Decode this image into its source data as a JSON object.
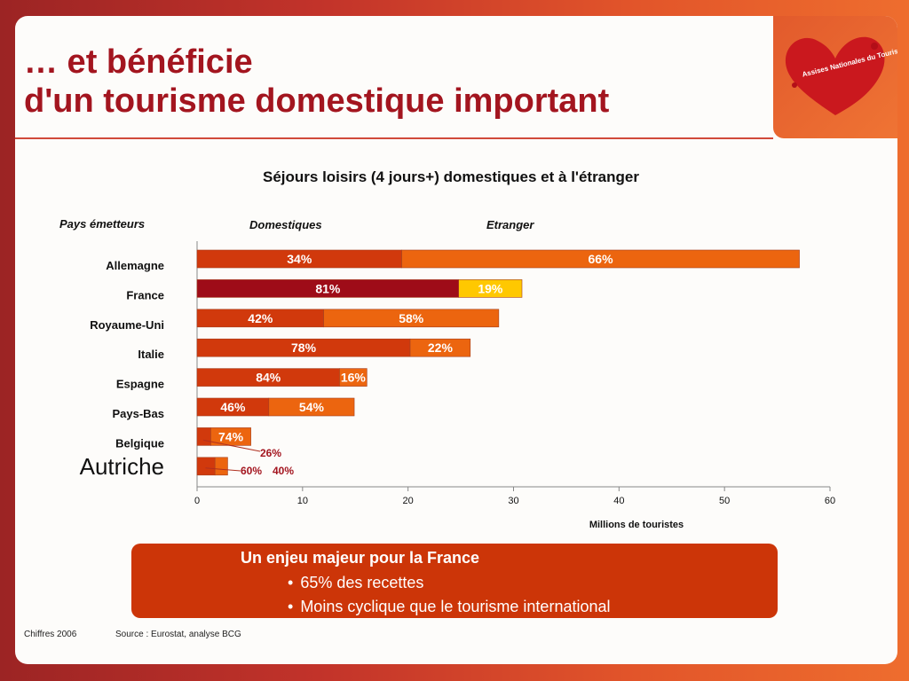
{
  "title": {
    "line1": "… et bénéficie",
    "line2": "d'un tourisme domestique important"
  },
  "logo": {
    "text": "Assises Nationales du Tourisme",
    "icon": "heart-logo-icon",
    "color": "#c8141e"
  },
  "chart_data": {
    "type": "bar",
    "orientation": "horizontal",
    "stacked": true,
    "title": "Séjours loisirs (4 jours+) domestiques et à l'étranger",
    "row_header": "Pays émetteurs",
    "xlabel": "Millions de touristes",
    "xlim": [
      0,
      60
    ],
    "xticks": [
      0,
      10,
      20,
      30,
      40,
      50,
      60
    ],
    "grid": false,
    "categories": [
      "Allemagne",
      "France",
      "Royaume-Uni",
      "Italie",
      "Espagne",
      "Pays-Bas",
      "Belgique",
      "Autriche"
    ],
    "series": [
      {
        "name": "Domestiques",
        "values": [
          19.4,
          24.8,
          12.0,
          20.2,
          13.5,
          6.8,
          1.3,
          1.7
        ],
        "labels": [
          "34%",
          "81%",
          "42%",
          "78%",
          "84%",
          "46%",
          "26%",
          "60%"
        ],
        "color": "#d1390c"
      },
      {
        "name": "Etranger",
        "values": [
          37.7,
          6.0,
          16.6,
          5.7,
          2.6,
          8.1,
          3.8,
          1.2
        ],
        "labels": [
          "66%",
          "19%",
          "58%",
          "22%",
          "16%",
          "54%",
          "74%",
          "40%"
        ],
        "color": "#ec650f"
      }
    ],
    "highlight": {
      "category": "France",
      "colors": [
        "#9e0c18",
        "#ffc800"
      ]
    }
  },
  "callout": {
    "heading": "Un enjeu majeur pour la France",
    "bullets": [
      "65% des recettes",
      "Moins cyclique que le tourisme international"
    ]
  },
  "footer": {
    "date": "Chiffres 2006",
    "source": "Source : Eurostat, analyse BCG"
  }
}
